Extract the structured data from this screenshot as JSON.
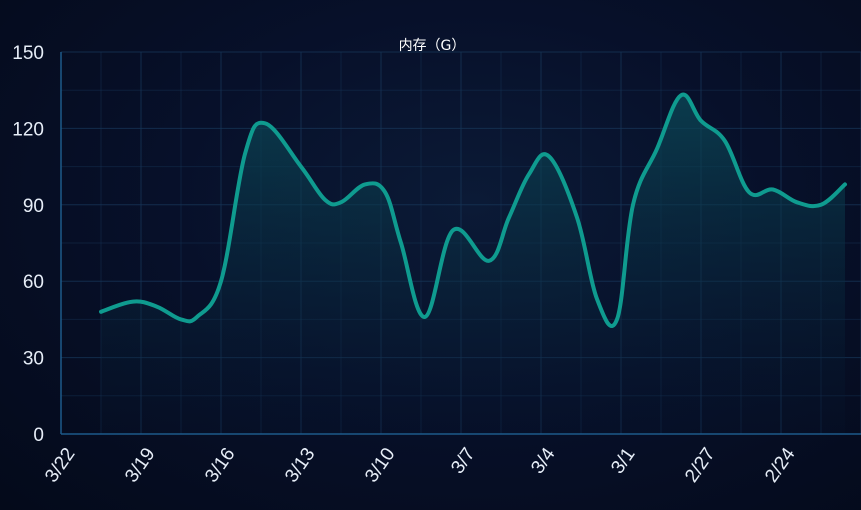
{
  "chart_data": {
    "type": "area",
    "title": "内存（G）",
    "xlabel": "",
    "ylabel": "",
    "ylim": [
      0,
      150
    ],
    "yticks": [
      "0",
      "30",
      "60",
      "90",
      "120",
      "150"
    ],
    "categories": [
      "3/22",
      "3/19",
      "3/16",
      "3/13",
      "3/10",
      "3/7",
      "3/4",
      "3/1",
      "2/27",
      "2/24"
    ],
    "grid": true,
    "legend": "none",
    "series": [
      {
        "x": [
          0,
          0.4,
          0.7,
          1.0,
          1.2,
          1.5,
          1.8,
          2.05,
          2.5,
          2.8,
          3.0,
          3.3,
          3.55,
          3.75,
          4.05,
          4.4,
          4.85,
          5.1,
          5.35,
          5.6,
          5.95,
          6.2,
          6.45,
          6.65,
          6.95,
          7.25,
          7.5,
          7.8,
          8.1,
          8.4,
          8.7,
          9.0,
          9.3
        ],
        "values": [
          48,
          52,
          50,
          45,
          46,
          60,
          110,
          122,
          105,
          92,
          91,
          98,
          95,
          75,
          46,
          80,
          68,
          85,
          102,
          109,
          85,
          53,
          45,
          90,
          112,
          133,
          123,
          115,
          95,
          96,
          91,
          90,
          98
        ]
      }
    ],
    "colors": {
      "line": "#0f9b8f",
      "area_top": "#0b4a58",
      "area_bottom": "#07162e",
      "grid": "#163456",
      "axis": "#1d5a8a",
      "text": "#e6edf7"
    }
  }
}
